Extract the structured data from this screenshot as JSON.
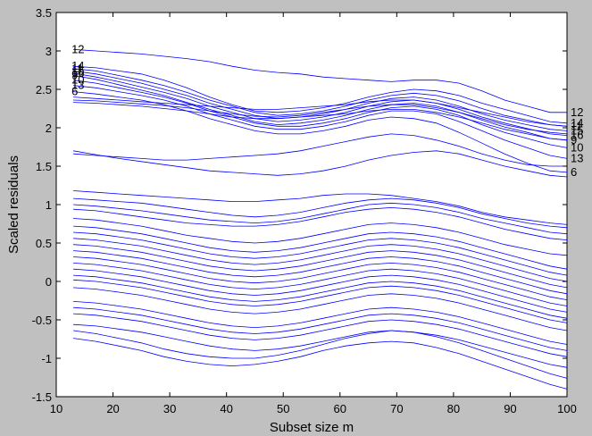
{
  "chart_data": {
    "type": "line",
    "xlabel": "Subset size m",
    "ylabel": "Scaled residuals",
    "xlim": [
      10,
      100
    ],
    "ylim": [
      -1.5,
      3.5
    ],
    "xticks": [
      10,
      20,
      30,
      40,
      50,
      60,
      70,
      80,
      90,
      100
    ],
    "yticks": [
      -1.5,
      -1,
      -0.5,
      0,
      0.5,
      1,
      1.5,
      2,
      2.5,
      3,
      3.5
    ],
    "grid": false,
    "line_color": "#0000ff",
    "m": [
      13,
      17,
      21,
      25,
      29,
      33,
      37,
      41,
      45,
      49,
      53,
      57,
      61,
      65,
      69,
      73,
      77,
      81,
      85,
      89,
      93,
      97,
      100
    ],
    "series": [
      {
        "label": "12",
        "values": [
          3.02,
          3.0,
          2.98,
          2.96,
          2.93,
          2.9,
          2.86,
          2.8,
          2.75,
          2.72,
          2.7,
          2.66,
          2.64,
          2.62,
          2.6,
          2.62,
          2.62,
          2.58,
          2.48,
          2.36,
          2.28,
          2.2,
          2.2
        ]
      },
      {
        "label": "14",
        "values": [
          2.8,
          2.78,
          2.74,
          2.7,
          2.62,
          2.52,
          2.4,
          2.3,
          2.22,
          2.2,
          2.22,
          2.26,
          2.32,
          2.4,
          2.46,
          2.5,
          2.48,
          2.42,
          2.32,
          2.24,
          2.16,
          2.08,
          2.06
        ]
      },
      {
        "label": "11",
        "values": [
          2.77,
          2.74,
          2.68,
          2.62,
          2.55,
          2.46,
          2.36,
          2.28,
          2.2,
          2.16,
          2.18,
          2.22,
          2.28,
          2.36,
          2.42,
          2.45,
          2.42,
          2.35,
          2.25,
          2.16,
          2.1,
          2.04,
          2.02
        ]
      },
      {
        "label": "15",
        "values": [
          2.74,
          2.7,
          2.64,
          2.58,
          2.5,
          2.42,
          2.32,
          2.24,
          2.16,
          2.12,
          2.14,
          2.18,
          2.24,
          2.32,
          2.38,
          2.4,
          2.36,
          2.28,
          2.18,
          2.1,
          2.04,
          1.98,
          1.96
        ]
      },
      {
        "label": "16",
        "values": [
          2.71,
          2.66,
          2.6,
          2.53,
          2.46,
          2.38,
          2.28,
          2.2,
          2.12,
          2.08,
          2.1,
          2.14,
          2.2,
          2.28,
          2.34,
          2.36,
          2.32,
          2.24,
          2.14,
          2.06,
          1.99,
          1.92,
          1.9
        ]
      },
      {
        "label": "9",
        "values": [
          2.68,
          2.63,
          2.56,
          2.49,
          2.42,
          2.33,
          2.24,
          2.16,
          2.08,
          2.04,
          2.06,
          2.1,
          2.16,
          2.24,
          2.3,
          2.32,
          2.28,
          2.2,
          2.1,
          2.01,
          1.94,
          1.86,
          1.84
        ]
      },
      {
        "label": "10",
        "values": [
          2.62,
          2.58,
          2.52,
          2.46,
          2.4,
          2.32,
          2.22,
          2.14,
          2.06,
          2.02,
          2.02,
          2.06,
          2.12,
          2.2,
          2.26,
          2.28,
          2.24,
          2.16,
          2.04,
          1.94,
          1.86,
          1.78,
          1.74
        ]
      },
      {
        "label": "13",
        "values": [
          2.55,
          2.52,
          2.47,
          2.42,
          2.36,
          2.28,
          2.18,
          2.1,
          2.02,
          1.98,
          1.98,
          2.02,
          2.08,
          2.16,
          2.22,
          2.22,
          2.18,
          2.08,
          1.96,
          1.84,
          1.74,
          1.64,
          1.6
        ]
      },
      {
        "label": "6",
        "values": [
          2.47,
          2.44,
          2.4,
          2.36,
          2.3,
          2.22,
          2.12,
          2.04,
          1.96,
          1.92,
          1.92,
          1.96,
          2.02,
          2.1,
          2.14,
          2.12,
          2.06,
          1.94,
          1.8,
          1.66,
          1.54,
          1.44,
          1.42
        ]
      },
      {
        "label": "",
        "values": [
          2.4,
          2.38,
          2.36,
          2.34,
          2.32,
          2.3,
          2.28,
          2.26,
          2.24,
          2.24,
          2.26,
          2.28,
          2.3,
          2.34,
          2.36,
          2.36,
          2.32,
          2.26,
          2.2,
          2.14,
          2.08,
          2.04,
          2.02
        ]
      },
      {
        "label": "",
        "values": [
          2.36,
          2.35,
          2.33,
          2.31,
          2.29,
          2.26,
          2.22,
          2.18,
          2.15,
          2.14,
          2.16,
          2.2,
          2.24,
          2.28,
          2.3,
          2.3,
          2.26,
          2.2,
          2.12,
          2.04,
          1.98,
          1.94,
          1.92
        ]
      },
      {
        "label": "",
        "values": [
          2.33,
          2.32,
          2.3,
          2.28,
          2.25,
          2.22,
          2.18,
          2.14,
          2.12,
          2.12,
          2.14,
          2.16,
          2.18,
          2.22,
          2.24,
          2.24,
          2.2,
          2.14,
          2.06,
          1.98,
          1.92,
          1.86,
          1.84
        ]
      },
      {
        "label": "",
        "values": [
          1.7,
          1.65,
          1.6,
          1.56,
          1.52,
          1.48,
          1.44,
          1.42,
          1.4,
          1.38,
          1.4,
          1.44,
          1.5,
          1.58,
          1.64,
          1.68,
          1.7,
          1.66,
          1.58,
          1.5,
          1.44,
          1.38,
          1.36
        ]
      },
      {
        "label": "",
        "values": [
          1.66,
          1.64,
          1.62,
          1.6,
          1.58,
          1.58,
          1.6,
          1.62,
          1.64,
          1.66,
          1.7,
          1.76,
          1.82,
          1.88,
          1.92,
          1.9,
          1.84,
          1.76,
          1.66,
          1.58,
          1.52,
          1.5,
          1.5
        ]
      },
      {
        "label": "",
        "values": [
          1.18,
          1.16,
          1.14,
          1.12,
          1.1,
          1.08,
          1.06,
          1.04,
          1.04,
          1.06,
          1.08,
          1.12,
          1.14,
          1.14,
          1.12,
          1.08,
          1.04,
          0.98,
          0.9,
          0.84,
          0.8,
          0.76,
          0.74
        ]
      },
      {
        "label": "",
        "values": [
          1.08,
          1.06,
          1.04,
          1.02,
          0.98,
          0.94,
          0.9,
          0.86,
          0.84,
          0.86,
          0.9,
          0.96,
          1.02,
          1.06,
          1.08,
          1.06,
          1.02,
          0.96,
          0.88,
          0.82,
          0.76,
          0.72,
          0.7
        ]
      },
      {
        "label": "",
        "values": [
          1.0,
          0.98,
          0.95,
          0.92,
          0.88,
          0.84,
          0.8,
          0.78,
          0.76,
          0.78,
          0.82,
          0.88,
          0.94,
          1.0,
          1.02,
          1.0,
          0.96,
          0.9,
          0.82,
          0.76,
          0.7,
          0.64,
          0.62
        ]
      },
      {
        "label": "",
        "values": [
          0.94,
          0.92,
          0.88,
          0.84,
          0.8,
          0.76,
          0.74,
          0.72,
          0.72,
          0.74,
          0.78,
          0.84,
          0.9,
          0.94,
          0.96,
          0.94,
          0.9,
          0.84,
          0.76,
          0.68,
          0.62,
          0.56,
          0.54
        ]
      },
      {
        "label": "",
        "values": [
          0.82,
          0.8,
          0.76,
          0.72,
          0.66,
          0.6,
          0.56,
          0.52,
          0.5,
          0.52,
          0.56,
          0.62,
          0.68,
          0.74,
          0.76,
          0.74,
          0.7,
          0.64,
          0.56,
          0.48,
          0.42,
          0.36,
          0.34
        ]
      },
      {
        "label": "",
        "values": [
          0.72,
          0.7,
          0.66,
          0.62,
          0.56,
          0.5,
          0.44,
          0.4,
          0.38,
          0.4,
          0.44,
          0.5,
          0.56,
          0.62,
          0.64,
          0.62,
          0.58,
          0.52,
          0.44,
          0.36,
          0.28,
          0.2,
          0.16
        ]
      },
      {
        "label": "",
        "values": [
          0.64,
          0.62,
          0.58,
          0.54,
          0.48,
          0.42,
          0.36,
          0.32,
          0.3,
          0.32,
          0.36,
          0.42,
          0.48,
          0.54,
          0.56,
          0.54,
          0.5,
          0.44,
          0.36,
          0.28,
          0.2,
          0.12,
          0.08
        ]
      },
      {
        "label": "",
        "values": [
          0.56,
          0.54,
          0.5,
          0.46,
          0.4,
          0.34,
          0.28,
          0.24,
          0.22,
          0.24,
          0.28,
          0.34,
          0.4,
          0.46,
          0.48,
          0.46,
          0.42,
          0.36,
          0.28,
          0.2,
          0.12,
          0.04,
          0.0
        ]
      },
      {
        "label": "",
        "values": [
          0.48,
          0.46,
          0.42,
          0.38,
          0.32,
          0.26,
          0.2,
          0.16,
          0.14,
          0.16,
          0.2,
          0.26,
          0.32,
          0.38,
          0.4,
          0.38,
          0.34,
          0.28,
          0.2,
          0.12,
          0.04,
          -0.04,
          -0.08
        ]
      },
      {
        "label": "",
        "values": [
          0.4,
          0.38,
          0.34,
          0.3,
          0.24,
          0.18,
          0.12,
          0.08,
          0.06,
          0.08,
          0.12,
          0.18,
          0.24,
          0.3,
          0.32,
          0.3,
          0.26,
          0.2,
          0.12,
          0.04,
          -0.04,
          -0.12,
          -0.16
        ]
      },
      {
        "label": "",
        "values": [
          0.32,
          0.3,
          0.26,
          0.22,
          0.16,
          0.1,
          0.04,
          0.0,
          -0.02,
          0.0,
          0.04,
          0.1,
          0.16,
          0.22,
          0.24,
          0.22,
          0.18,
          0.12,
          0.04,
          -0.04,
          -0.12,
          -0.2,
          -0.24
        ]
      },
      {
        "label": "",
        "values": [
          0.24,
          0.22,
          0.18,
          0.14,
          0.08,
          0.02,
          -0.04,
          -0.08,
          -0.1,
          -0.08,
          -0.04,
          0.02,
          0.08,
          0.14,
          0.16,
          0.14,
          0.1,
          0.04,
          -0.04,
          -0.12,
          -0.2,
          -0.28,
          -0.32
        ]
      },
      {
        "label": "",
        "values": [
          0.16,
          0.14,
          0.1,
          0.06,
          0.0,
          -0.06,
          -0.12,
          -0.16,
          -0.18,
          -0.16,
          -0.12,
          -0.06,
          0.0,
          0.06,
          0.08,
          0.06,
          0.02,
          -0.04,
          -0.12,
          -0.2,
          -0.28,
          -0.36,
          -0.4
        ]
      },
      {
        "label": "",
        "values": [
          0.08,
          0.06,
          0.02,
          -0.02,
          -0.08,
          -0.14,
          -0.2,
          -0.24,
          -0.26,
          -0.24,
          -0.2,
          -0.14,
          -0.08,
          -0.02,
          0.0,
          -0.02,
          -0.06,
          -0.12,
          -0.2,
          -0.28,
          -0.36,
          -0.44,
          -0.48
        ]
      },
      {
        "label": "",
        "values": [
          0.02,
          0.0,
          -0.04,
          -0.08,
          -0.14,
          -0.2,
          -0.26,
          -0.3,
          -0.32,
          -0.3,
          -0.26,
          -0.2,
          -0.14,
          -0.08,
          -0.06,
          -0.08,
          -0.12,
          -0.18,
          -0.26,
          -0.34,
          -0.42,
          -0.5,
          -0.54
        ]
      },
      {
        "label": "",
        "values": [
          -0.08,
          -0.1,
          -0.14,
          -0.18,
          -0.24,
          -0.3,
          -0.36,
          -0.4,
          -0.42,
          -0.4,
          -0.36,
          -0.3,
          -0.24,
          -0.18,
          -0.16,
          -0.18,
          -0.22,
          -0.28,
          -0.36,
          -0.44,
          -0.52,
          -0.6,
          -0.64
        ]
      },
      {
        "label": "",
        "values": [
          -0.26,
          -0.28,
          -0.32,
          -0.36,
          -0.42,
          -0.48,
          -0.54,
          -0.58,
          -0.6,
          -0.58,
          -0.54,
          -0.48,
          -0.42,
          -0.36,
          -0.34,
          -0.36,
          -0.4,
          -0.46,
          -0.54,
          -0.62,
          -0.7,
          -0.78,
          -0.82
        ]
      },
      {
        "label": "",
        "values": [
          -0.34,
          -0.36,
          -0.4,
          -0.44,
          -0.5,
          -0.56,
          -0.62,
          -0.66,
          -0.68,
          -0.66,
          -0.62,
          -0.56,
          -0.5,
          -0.44,
          -0.42,
          -0.44,
          -0.48,
          -0.54,
          -0.62,
          -0.7,
          -0.78,
          -0.86,
          -0.9
        ]
      },
      {
        "label": "",
        "values": [
          -0.42,
          -0.44,
          -0.48,
          -0.52,
          -0.58,
          -0.64,
          -0.7,
          -0.74,
          -0.76,
          -0.74,
          -0.7,
          -0.64,
          -0.58,
          -0.52,
          -0.5,
          -0.52,
          -0.56,
          -0.62,
          -0.7,
          -0.78,
          -0.86,
          -0.94,
          -0.98
        ]
      },
      {
        "label": "",
        "values": [
          -0.56,
          -0.58,
          -0.62,
          -0.66,
          -0.72,
          -0.78,
          -0.84,
          -0.88,
          -0.9,
          -0.88,
          -0.84,
          -0.78,
          -0.72,
          -0.66,
          -0.64,
          -0.66,
          -0.7,
          -0.76,
          -0.84,
          -0.92,
          -1.0,
          -1.08,
          -1.12
        ]
      },
      {
        "label": "",
        "values": [
          -0.64,
          -0.68,
          -0.74,
          -0.8,
          -0.88,
          -0.94,
          -0.98,
          -1.0,
          -1.0,
          -0.96,
          -0.9,
          -0.82,
          -0.74,
          -0.68,
          -0.64,
          -0.66,
          -0.72,
          -0.8,
          -0.9,
          -1.0,
          -1.1,
          -1.2,
          -1.26
        ]
      },
      {
        "label": "",
        "values": [
          -0.74,
          -0.78,
          -0.84,
          -0.9,
          -0.98,
          -1.04,
          -1.08,
          -1.1,
          -1.08,
          -1.04,
          -0.98,
          -0.9,
          -0.84,
          -0.8,
          -0.78,
          -0.8,
          -0.86,
          -0.94,
          -1.04,
          -1.14,
          -1.24,
          -1.34,
          -1.4
        ]
      }
    ]
  }
}
